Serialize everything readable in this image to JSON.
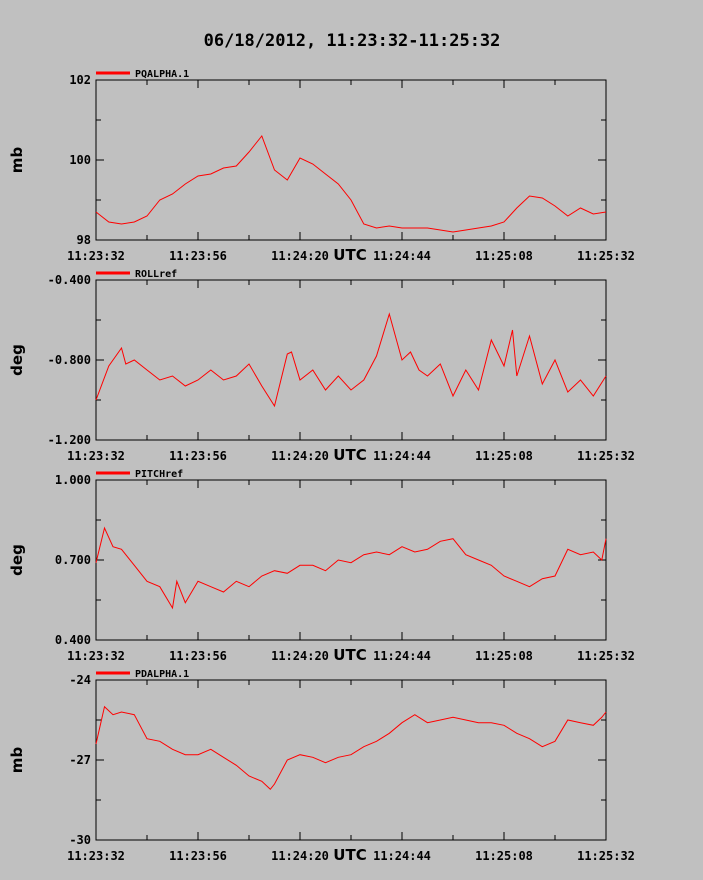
{
  "title": "06/18/2012, 11:23:32-11:25:32",
  "x_unit": "UTC",
  "colors": {
    "background": "#c0c0c0",
    "series": "#ff0000",
    "axes": "#000000"
  },
  "chart_data": [
    {
      "type": "line",
      "title": "06/18/2012, 11:23:32-11:25:32",
      "xlabel": "UTC",
      "ylabel": "mb",
      "legend_position": "top-left",
      "grid": false,
      "x_ticks": [
        "11:23:32",
        "11:23:56",
        "11:24:20",
        "11:24:44",
        "11:25:08",
        "11:25:32"
      ],
      "xlim": [
        0,
        120
      ],
      "ylim": [
        98,
        102
      ],
      "y_ticks": [
        "98",
        "100",
        "102"
      ],
      "y_tick_values": [
        98,
        100,
        102
      ],
      "series": [
        {
          "name": "PQALPHA.1",
          "x": [
            0,
            3,
            6,
            9,
            12,
            15,
            18,
            21,
            24,
            27,
            30,
            33,
            36,
            39,
            42,
            45,
            48,
            51,
            54,
            57,
            60,
            63,
            66,
            69,
            72,
            75,
            78,
            81,
            84,
            87,
            90,
            93,
            96,
            99,
            102,
            105,
            108,
            111,
            114,
            117,
            120
          ],
          "values": [
            98.7,
            98.45,
            98.4,
            98.45,
            98.6,
            99.0,
            99.15,
            99.4,
            99.6,
            99.65,
            99.8,
            99.85,
            100.2,
            100.6,
            99.75,
            99.5,
            100.05,
            99.9,
            99.65,
            99.4,
            99.0,
            98.4,
            98.3,
            98.35,
            98.3,
            98.3,
            98.3,
            98.25,
            98.2,
            98.25,
            98.3,
            98.35,
            98.45,
            98.8,
            99.1,
            99.05,
            98.85,
            98.6,
            98.8,
            98.65,
            98.7
          ]
        }
      ]
    },
    {
      "type": "line",
      "xlabel": "UTC",
      "ylabel": "deg",
      "legend_position": "top-left",
      "grid": false,
      "x_ticks": [
        "11:23:32",
        "11:23:56",
        "11:24:20",
        "11:24:44",
        "11:25:08",
        "11:25:32"
      ],
      "xlim": [
        0,
        120
      ],
      "ylim": [
        -1.2,
        -0.4
      ],
      "y_ticks": [
        "-0.400",
        "-0.800",
        "-1.200"
      ],
      "y_tick_values": [
        -0.4,
        -0.8,
        -1.2
      ],
      "series": [
        {
          "name": "ROLLref",
          "x": [
            0,
            3,
            6,
            7,
            9,
            12,
            15,
            18,
            21,
            24,
            27,
            30,
            33,
            36,
            39,
            42,
            45,
            46,
            48,
            51,
            54,
            57,
            60,
            63,
            66,
            69,
            72,
            74,
            76,
            78,
            81,
            84,
            87,
            90,
            93,
            96,
            98,
            99,
            102,
            105,
            108,
            111,
            114,
            117,
            120
          ],
          "values": [
            -1.0,
            -0.83,
            -0.74,
            -0.82,
            -0.8,
            -0.85,
            -0.9,
            -0.88,
            -0.93,
            -0.9,
            -0.85,
            -0.9,
            -0.88,
            -0.82,
            -0.93,
            -1.03,
            -0.77,
            -0.76,
            -0.9,
            -0.85,
            -0.95,
            -0.88,
            -0.95,
            -0.9,
            -0.78,
            -0.57,
            -0.8,
            -0.76,
            -0.85,
            -0.88,
            -0.82,
            -0.98,
            -0.85,
            -0.95,
            -0.7,
            -0.83,
            -0.65,
            -0.88,
            -0.68,
            -0.92,
            -0.8,
            -0.96,
            -0.9,
            -0.98,
            -0.88
          ]
        }
      ]
    },
    {
      "type": "line",
      "xlabel": "UTC",
      "ylabel": "deg",
      "legend_position": "top-left",
      "grid": false,
      "x_ticks": [
        "11:23:32",
        "11:23:56",
        "11:24:20",
        "11:24:44",
        "11:25:08",
        "11:25:32"
      ],
      "xlim": [
        0,
        120
      ],
      "ylim": [
        0.4,
        1.0
      ],
      "y_ticks": [
        "1.000",
        "0.700",
        "0.400"
      ],
      "y_tick_values": [
        1.0,
        0.7,
        0.4
      ],
      "series": [
        {
          "name": "PITCHref",
          "x": [
            0,
            2,
            4,
            6,
            9,
            12,
            15,
            18,
            19,
            21,
            24,
            27,
            30,
            33,
            36,
            39,
            42,
            45,
            48,
            51,
            54,
            57,
            60,
            63,
            66,
            69,
            72,
            75,
            78,
            81,
            84,
            87,
            90,
            93,
            96,
            99,
            102,
            105,
            108,
            111,
            114,
            117,
            119,
            120
          ],
          "values": [
            0.69,
            0.82,
            0.75,
            0.74,
            0.68,
            0.62,
            0.6,
            0.52,
            0.62,
            0.54,
            0.62,
            0.6,
            0.58,
            0.62,
            0.6,
            0.64,
            0.66,
            0.65,
            0.68,
            0.68,
            0.66,
            0.7,
            0.69,
            0.72,
            0.73,
            0.72,
            0.75,
            0.73,
            0.74,
            0.77,
            0.78,
            0.72,
            0.7,
            0.68,
            0.64,
            0.62,
            0.6,
            0.63,
            0.64,
            0.74,
            0.72,
            0.73,
            0.7,
            0.78
          ]
        }
      ]
    },
    {
      "type": "line",
      "xlabel": "UTC",
      "ylabel": "mb",
      "legend_position": "top-left",
      "grid": false,
      "x_ticks": [
        "11:23:32",
        "11:23:56",
        "11:24:20",
        "11:24:44",
        "11:25:08",
        "11:25:32"
      ],
      "xlim": [
        0,
        120
      ],
      "ylim": [
        -30,
        -24
      ],
      "y_ticks": [
        "-24",
        "-27",
        "-30"
      ],
      "y_tick_values": [
        -24,
        -27,
        -30
      ],
      "series": [
        {
          "name": "PDALPHA.1",
          "x": [
            0,
            2,
            4,
            6,
            9,
            12,
            15,
            18,
            21,
            24,
            27,
            30,
            33,
            36,
            39,
            41,
            42,
            45,
            48,
            51,
            54,
            57,
            60,
            63,
            66,
            69,
            72,
            75,
            78,
            81,
            84,
            87,
            90,
            93,
            96,
            99,
            102,
            105,
            108,
            111,
            114,
            117,
            119,
            120
          ],
          "values": [
            -26.4,
            -25.0,
            -25.3,
            -25.2,
            -25.3,
            -26.2,
            -26.3,
            -26.6,
            -26.8,
            -26.8,
            -26.6,
            -26.9,
            -27.2,
            -27.6,
            -27.8,
            -28.1,
            -27.9,
            -27.0,
            -26.8,
            -26.9,
            -27.1,
            -26.9,
            -26.8,
            -26.5,
            -26.3,
            -26.0,
            -25.6,
            -25.3,
            -25.6,
            -25.5,
            -25.4,
            -25.5,
            -25.6,
            -25.6,
            -25.7,
            -26.0,
            -26.2,
            -26.5,
            -26.3,
            -25.5,
            -25.6,
            -25.7,
            -25.4,
            -25.2
          ]
        }
      ]
    }
  ]
}
